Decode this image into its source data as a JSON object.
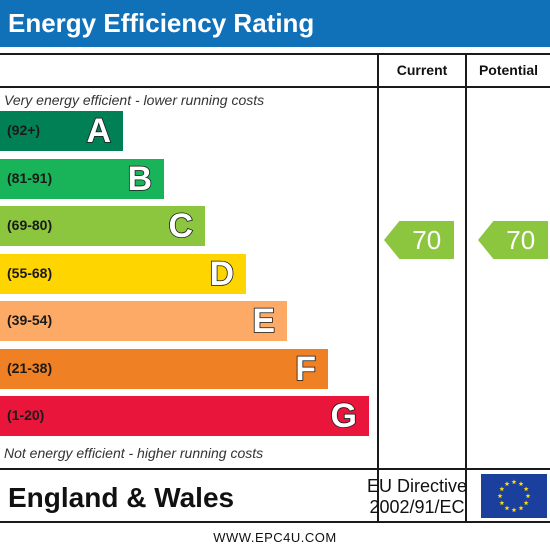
{
  "header": {
    "title": "Energy Efficiency Rating"
  },
  "columns": {
    "current": "Current",
    "potential": "Potential"
  },
  "notes": {
    "top": "Very energy efficient - lower running costs",
    "bottom": "Not energy efficient - higher running costs"
  },
  "chart_data": {
    "type": "bar",
    "title": "Energy Efficiency Rating",
    "bands": [
      {
        "range": "(92+)",
        "letter": "A",
        "min": 92,
        "max": 100,
        "color": "#008054"
      },
      {
        "range": "(81-91)",
        "letter": "B",
        "min": 81,
        "max": 91,
        "color": "#19b459"
      },
      {
        "range": "(69-80)",
        "letter": "C",
        "min": 69,
        "max": 80,
        "color": "#8cc63f"
      },
      {
        "range": "(55-68)",
        "letter": "D",
        "min": 55,
        "max": 68,
        "color": "#ffd500"
      },
      {
        "range": "(39-54)",
        "letter": "E",
        "min": 39,
        "max": 54,
        "color": "#fcaa65"
      },
      {
        "range": "(21-38)",
        "letter": "F",
        "min": 21,
        "max": 38,
        "color": "#ef8023"
      },
      {
        "range": "(1-20)",
        "letter": "G",
        "min": 1,
        "max": 20,
        "color": "#e9153b"
      }
    ],
    "current": {
      "value": 70,
      "band": "C",
      "color": "#8cc63f"
    },
    "potential": {
      "value": 70,
      "band": "C",
      "color": "#8cc63f"
    }
  },
  "footer": {
    "region": "England & Wales",
    "directive_line1": "EU Directive",
    "directive_line2": "2002/91/EC",
    "website": "WWW.EPC4U.COM"
  }
}
